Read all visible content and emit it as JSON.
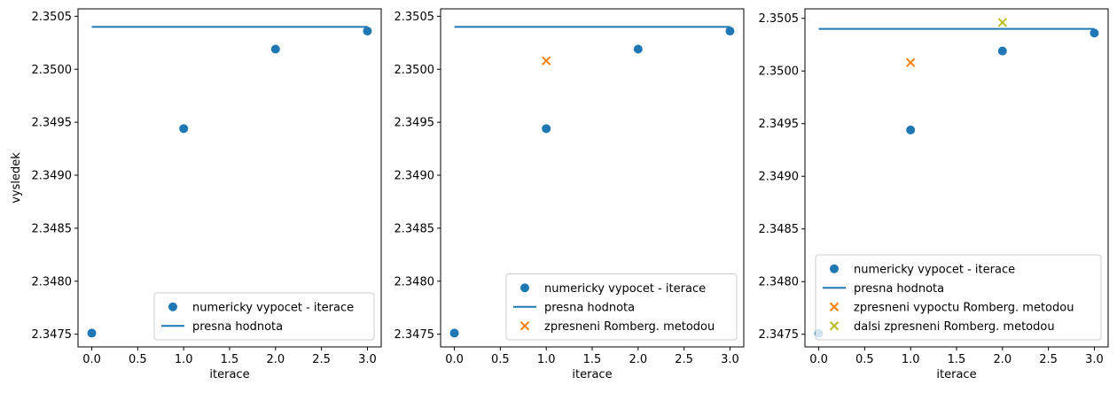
{
  "colors": {
    "series_points": "#1f77b4",
    "exact_line": "#1f77b4",
    "romberg": "#ff7f0e",
    "romberg2": "#bcbd22"
  },
  "chart_data": [
    {
      "type": "scatter",
      "xlabel": "iterace",
      "ylabel": "vysledek",
      "xlim": [
        -0.15,
        3.15
      ],
      "ylim": [
        2.34738,
        2.35057
      ],
      "xticks": [
        0.0,
        0.5,
        1.0,
        1.5,
        2.0,
        2.5,
        3.0
      ],
      "xtick_labels": [
        "0.0",
        "0.5",
        "1.0",
        "1.5",
        "2.0",
        "2.5",
        "3.0"
      ],
      "yticks": [
        2.3475,
        2.348,
        2.3485,
        2.349,
        2.3495,
        2.35,
        2.3505
      ],
      "ytick_labels": [
        "2.3475",
        "2.3480",
        "2.3485",
        "2.3490",
        "2.3495",
        "2.3500",
        "2.3505"
      ],
      "legend_position": "lower-right",
      "series": [
        {
          "name": "numericky vypocet - iterace",
          "kind": "scatter",
          "marker": "circle",
          "color": "#1f77b4",
          "x": [
            0,
            1,
            2,
            3
          ],
          "y": [
            2.34751,
            2.34944,
            2.35019,
            2.35036
          ]
        },
        {
          "name": "presna hodnota",
          "kind": "line",
          "color": "#1f77b4",
          "x": [
            0,
            3
          ],
          "y": [
            2.3504,
            2.3504
          ]
        }
      ]
    },
    {
      "type": "scatter",
      "xlabel": "iterace",
      "ylabel": "",
      "xlim": [
        -0.15,
        3.15
      ],
      "ylim": [
        2.34738,
        2.35057
      ],
      "xticks": [
        0.0,
        0.5,
        1.0,
        1.5,
        2.0,
        2.5,
        3.0
      ],
      "xtick_labels": [
        "0.0",
        "0.5",
        "1.0",
        "1.5",
        "2.0",
        "2.5",
        "3.0"
      ],
      "yticks": [
        2.3475,
        2.348,
        2.3485,
        2.349,
        2.3495,
        2.35,
        2.3505
      ],
      "ytick_labels": [
        "2.3475",
        "2.3480",
        "2.3485",
        "2.3490",
        "2.3495",
        "2.3500",
        "2.3505"
      ],
      "legend_position": "lower-right",
      "series": [
        {
          "name": "numericky vypocet - iterace",
          "kind": "scatter",
          "marker": "circle",
          "color": "#1f77b4",
          "x": [
            0,
            1,
            2,
            3
          ],
          "y": [
            2.34751,
            2.34944,
            2.35019,
            2.35036
          ]
        },
        {
          "name": "presna hodnota",
          "kind": "line",
          "color": "#1f77b4",
          "x": [
            0,
            3
          ],
          "y": [
            2.3504,
            2.3504
          ]
        },
        {
          "name": "zpresneni Romberg. metodou",
          "kind": "scatter",
          "marker": "x",
          "color": "#ff7f0e",
          "x": [
            1
          ],
          "y": [
            2.35008
          ]
        }
      ]
    },
    {
      "type": "scatter",
      "xlabel": "iterace",
      "ylabel": "",
      "xlim": [
        -0.15,
        3.15
      ],
      "ylim": [
        2.34738,
        2.35059
      ],
      "xticks": [
        0.0,
        0.5,
        1.0,
        1.5,
        2.0,
        2.5,
        3.0
      ],
      "xtick_labels": [
        "0.0",
        "0.5",
        "1.0",
        "1.5",
        "2.0",
        "2.5",
        "3.0"
      ],
      "yticks": [
        2.3475,
        2.348,
        2.3485,
        2.349,
        2.3495,
        2.35,
        2.3505
      ],
      "ytick_labels": [
        "2.3475",
        "2.3480",
        "2.3485",
        "2.3490",
        "2.3495",
        "2.3500",
        "2.3505"
      ],
      "legend_position": "lower-right",
      "series": [
        {
          "name": "numericky vypocet - iterace",
          "kind": "scatter",
          "marker": "circle",
          "color": "#1f77b4",
          "x": [
            0,
            1,
            2,
            3
          ],
          "y": [
            2.34751,
            2.34944,
            2.35019,
            2.35036
          ]
        },
        {
          "name": "presna hodnota",
          "kind": "line",
          "color": "#1f77b4",
          "x": [
            0,
            3
          ],
          "y": [
            2.3504,
            2.3504
          ]
        },
        {
          "name": "zpresneni vypoctu Romberg. metodou",
          "kind": "scatter",
          "marker": "x",
          "color": "#ff7f0e",
          "x": [
            1
          ],
          "y": [
            2.35008
          ]
        },
        {
          "name": "dalsi zpresneni Romberg. metodou",
          "kind": "scatter",
          "marker": "x",
          "color": "#bcbd22",
          "x": [
            2
          ],
          "y": [
            2.35046
          ]
        }
      ]
    }
  ]
}
